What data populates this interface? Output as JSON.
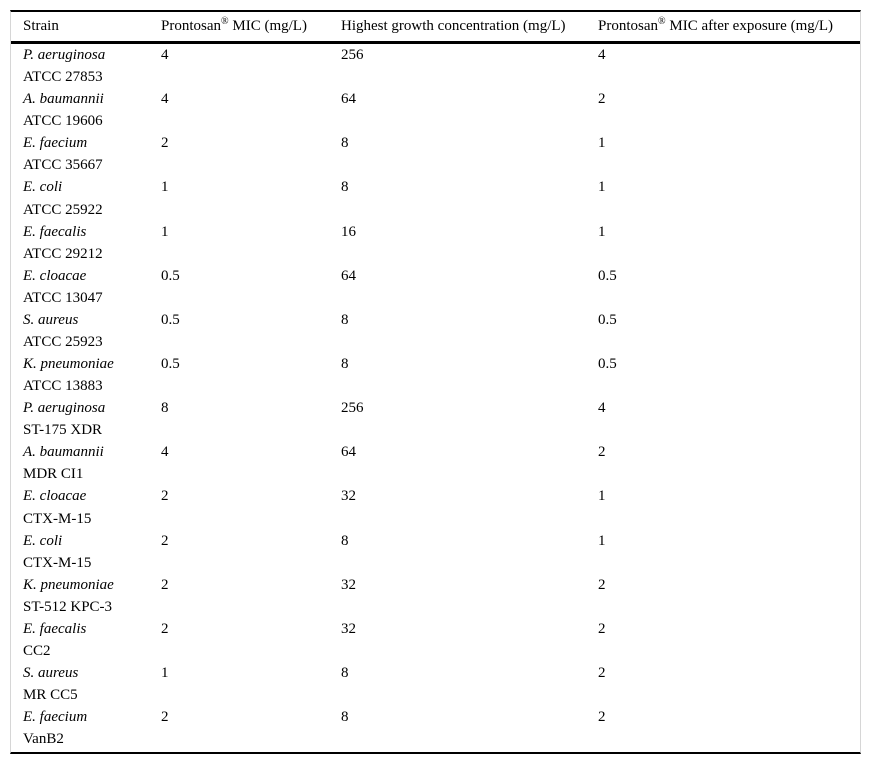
{
  "table": {
    "columns": {
      "strain": "Strain",
      "mic": {
        "pre": "Prontosan",
        "sup": "®",
        "post": " MIC (mg/L)"
      },
      "growth": "Highest growth concentration (mg/L)",
      "mic_after": {
        "pre": "Prontosan",
        "sup": "®",
        "post": " MIC after exposure (mg/L)"
      }
    },
    "rows": [
      {
        "species": "P. aeruginosa",
        "strain_id": "ATCC 27853",
        "mic": "4",
        "growth": "256",
        "mic_after": "4"
      },
      {
        "species": "A. baumannii",
        "strain_id": "ATCC 19606",
        "mic": "4",
        "growth": "64",
        "mic_after": "2"
      },
      {
        "species": "E. faecium",
        "strain_id": "ATCC 35667",
        "mic": "2",
        "growth": "8",
        "mic_after": "1"
      },
      {
        "species": "E. coli",
        "strain_id": "ATCC 25922",
        "mic": "1",
        "growth": "8",
        "mic_after": "1"
      },
      {
        "species": "E. faecalis",
        "strain_id": "ATCC 29212",
        "mic": "1",
        "growth": "16",
        "mic_after": "1"
      },
      {
        "species": "E. cloacae",
        "strain_id": "ATCC 13047",
        "mic": "0.5",
        "growth": "64",
        "mic_after": "0.5"
      },
      {
        "species": "S. aureus",
        "strain_id": "ATCC 25923",
        "mic": "0.5",
        "growth": "8",
        "mic_after": "0.5"
      },
      {
        "species": "K. pneumoniae",
        "strain_id": "ATCC 13883",
        "mic": "0.5",
        "growth": "8",
        "mic_after": "0.5"
      },
      {
        "species": "P. aeruginosa",
        "strain_id": "ST-175 XDR",
        "mic": "8",
        "growth": "256",
        "mic_after": "4"
      },
      {
        "species": "A. baumannii",
        "strain_id": "MDR CI1",
        "mic": "4",
        "growth": "64",
        "mic_after": "2"
      },
      {
        "species": "E. cloacae",
        "strain_id": "CTX-M-15",
        "mic": "2",
        "growth": "32",
        "mic_after": "1"
      },
      {
        "species": "E. coli",
        "strain_id": "CTX-M-15",
        "mic": "2",
        "growth": "8",
        "mic_after": "1"
      },
      {
        "species": "K. pneumoniae",
        "strain_id": "ST-512 KPC-3",
        "mic": "2",
        "growth": "32",
        "mic_after": "2"
      },
      {
        "species": "E. faecalis",
        "strain_id": "CC2",
        "mic": "2",
        "growth": "32",
        "mic_after": "2"
      },
      {
        "species": "S. aureus",
        "strain_id": "MR CC5",
        "mic": "1",
        "growth": "8",
        "mic_after": "2"
      },
      {
        "species": "E. faecium",
        "strain_id": "VanB2",
        "mic": "2",
        "growth": "8",
        "mic_after": "2"
      }
    ]
  }
}
